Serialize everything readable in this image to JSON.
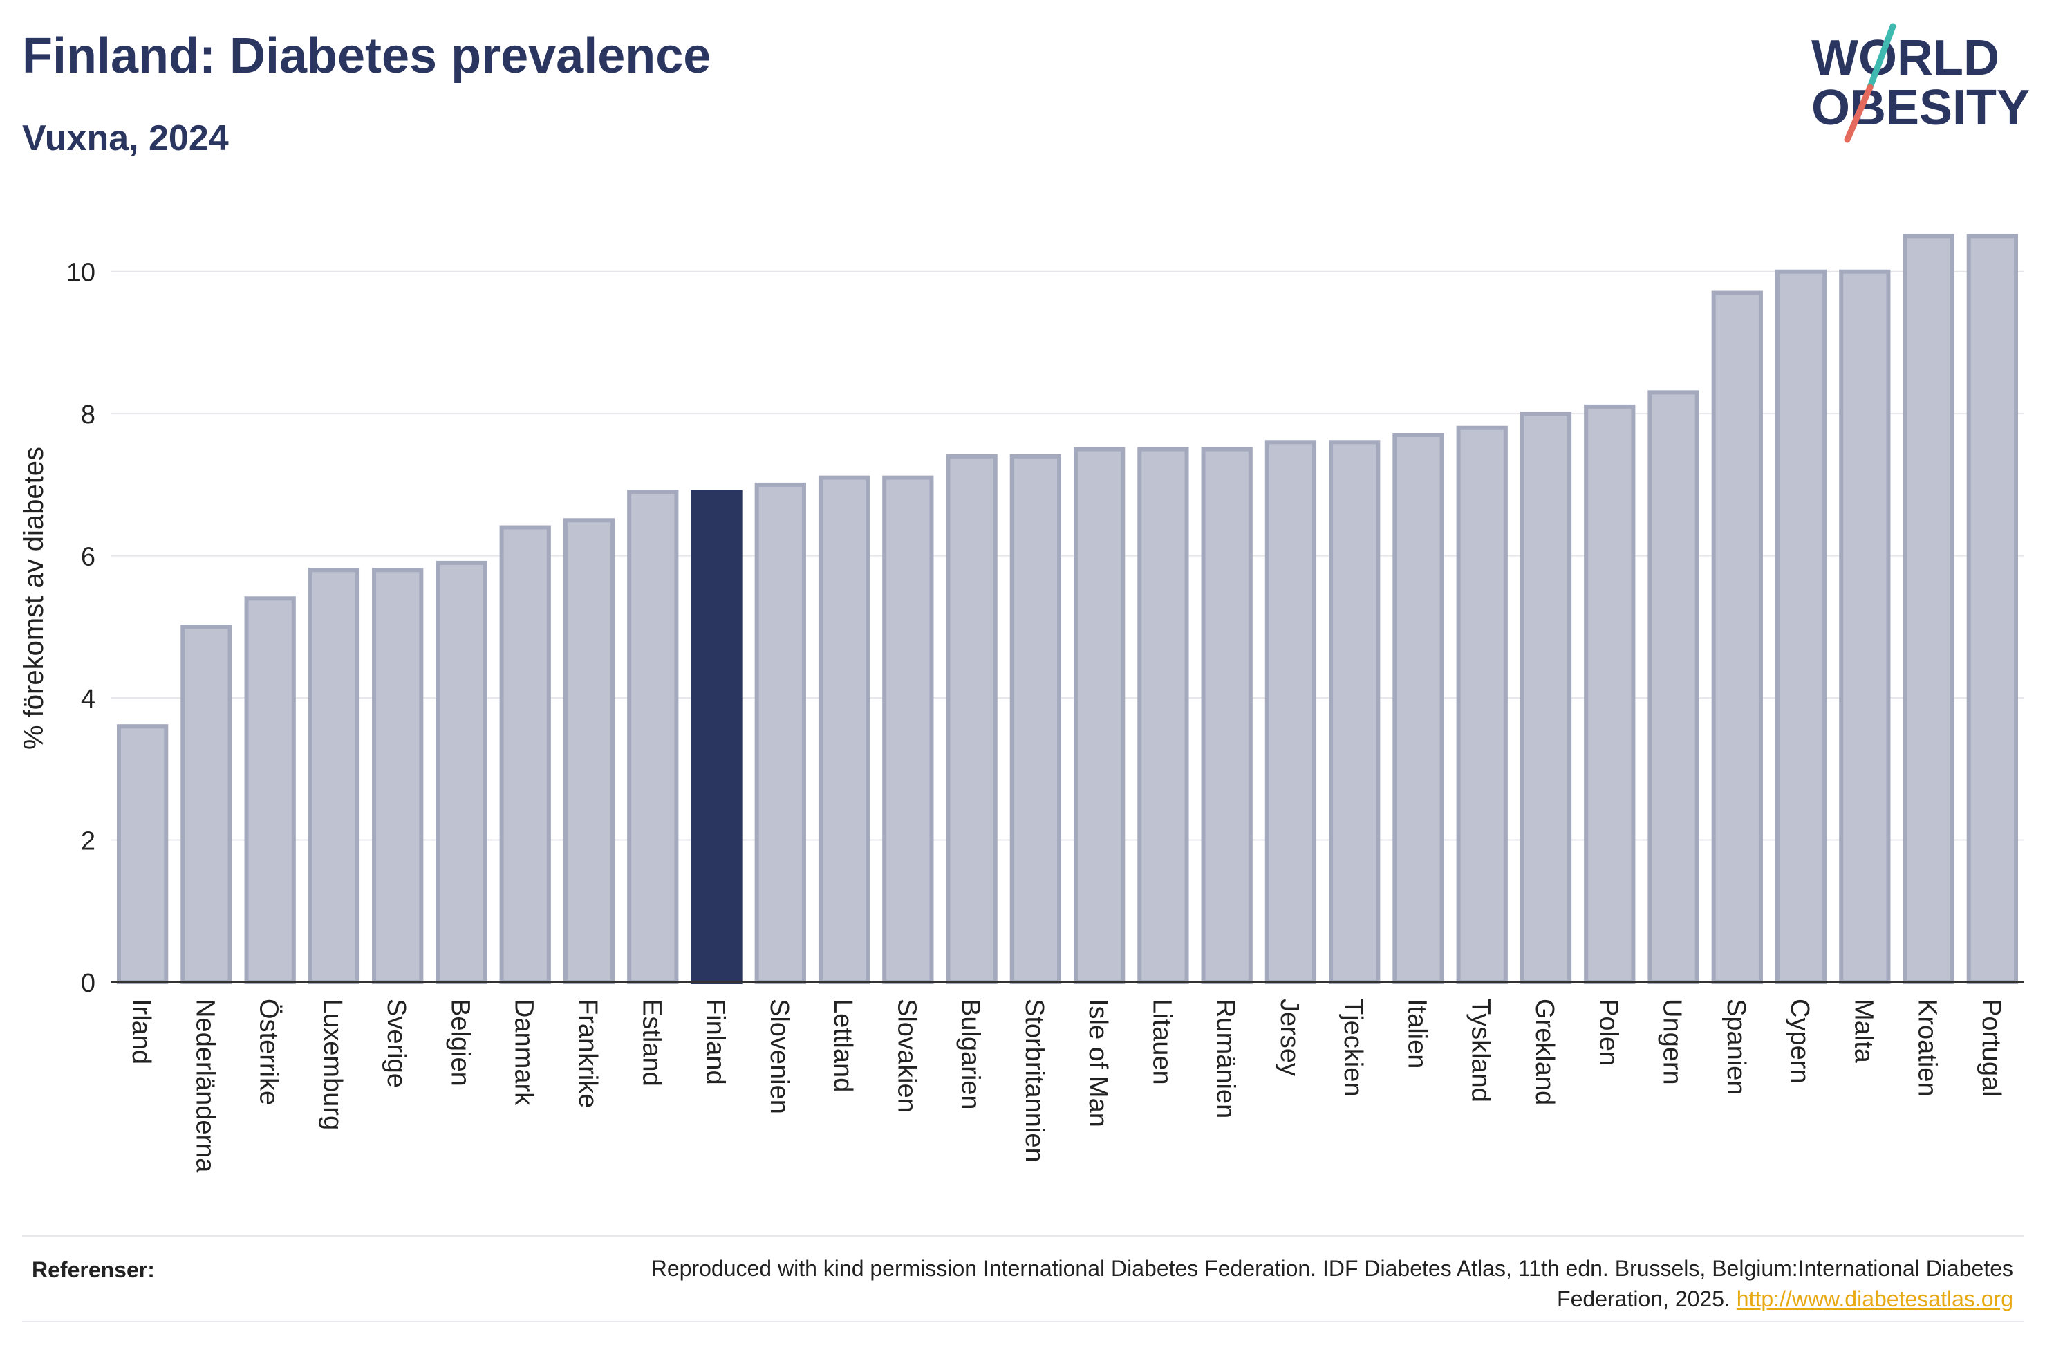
{
  "header": {
    "title": "Finland: Diabetes prevalence",
    "subtitle": "Vuxna, 2024"
  },
  "logo": {
    "line1": "WORLD",
    "line2": "OBESITY",
    "text_color": "#2a3560",
    "slash_color_top": "#3fb8b0",
    "slash_color_bottom": "#e36a5c"
  },
  "colors": {
    "bar": "#bfc2d0",
    "bar_stroke": "#a4a9bd",
    "highlight": "#2a3560",
    "grid": "#e6e6ea"
  },
  "chart_data": {
    "type": "bar",
    "ylabel": "% förekomst av diabetes",
    "ylim": [
      0,
      11
    ],
    "yticks": [
      0,
      2,
      4,
      6,
      8,
      10
    ],
    "highlight": "Finland",
    "grid": true,
    "categories": [
      "Irland",
      "Nederländerna",
      "Österrike",
      "Luxemburg",
      "Sverige",
      "Belgien",
      "Danmark",
      "Frankrike",
      "Estland",
      "Finland",
      "Slovenien",
      "Lettland",
      "Slovakien",
      "Bulgarien",
      "Storbritannien",
      "Isle of Man",
      "Litauen",
      "Rumänien",
      "Jersey",
      "Tjeckien",
      "Italien",
      "Tyskland",
      "Grekland",
      "Polen",
      "Ungern",
      "Spanien",
      "Cypern",
      "Malta",
      "Kroatien",
      "Portugal"
    ],
    "values": [
      3.6,
      5.0,
      5.4,
      5.8,
      5.8,
      5.9,
      6.4,
      6.5,
      6.9,
      6.9,
      7.0,
      7.1,
      7.1,
      7.4,
      7.4,
      7.5,
      7.5,
      7.5,
      7.6,
      7.6,
      7.7,
      7.8,
      8.0,
      8.1,
      8.3,
      9.7,
      10.0,
      10.0,
      10.5,
      10.5
    ]
  },
  "references": {
    "label": "Referenser:",
    "text": "Reproduced with kind permission International Diabetes Federation. IDF Diabetes Atlas, 11th edn. Brussels, Belgium:International Diabetes Federation, 2025.",
    "link": "http://www.diabetesatlas.org"
  }
}
